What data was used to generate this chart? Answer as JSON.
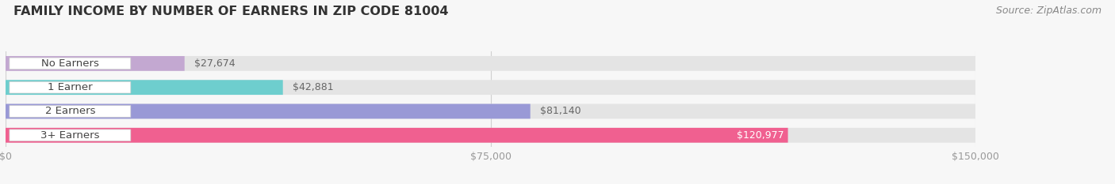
{
  "title": "FAMILY INCOME BY NUMBER OF EARNERS IN ZIP CODE 81004",
  "source": "Source: ZipAtlas.com",
  "categories": [
    "No Earners",
    "1 Earner",
    "2 Earners",
    "3+ Earners"
  ],
  "values": [
    27674,
    42881,
    81140,
    120977
  ],
  "labels": [
    "$27,674",
    "$42,881",
    "$81,140",
    "$120,977"
  ],
  "bar_colors": [
    "#c3a8d1",
    "#6ecece",
    "#9999d6",
    "#f06090"
  ],
  "bar_bg_color": "#e4e4e4",
  "xlim_max": 150000,
  "xticks": [
    0,
    75000,
    150000
  ],
  "xticklabels": [
    "$0",
    "$75,000",
    "$150,000"
  ],
  "background_color": "#f7f7f7",
  "title_fontsize": 11.5,
  "source_fontsize": 9,
  "bar_label_fontsize": 9,
  "category_label_fontsize": 9.5,
  "title_color": "#333333",
  "tick_color": "#999999",
  "value_label_color_inside": "#ffffff",
  "value_label_color_outside": "#666666"
}
